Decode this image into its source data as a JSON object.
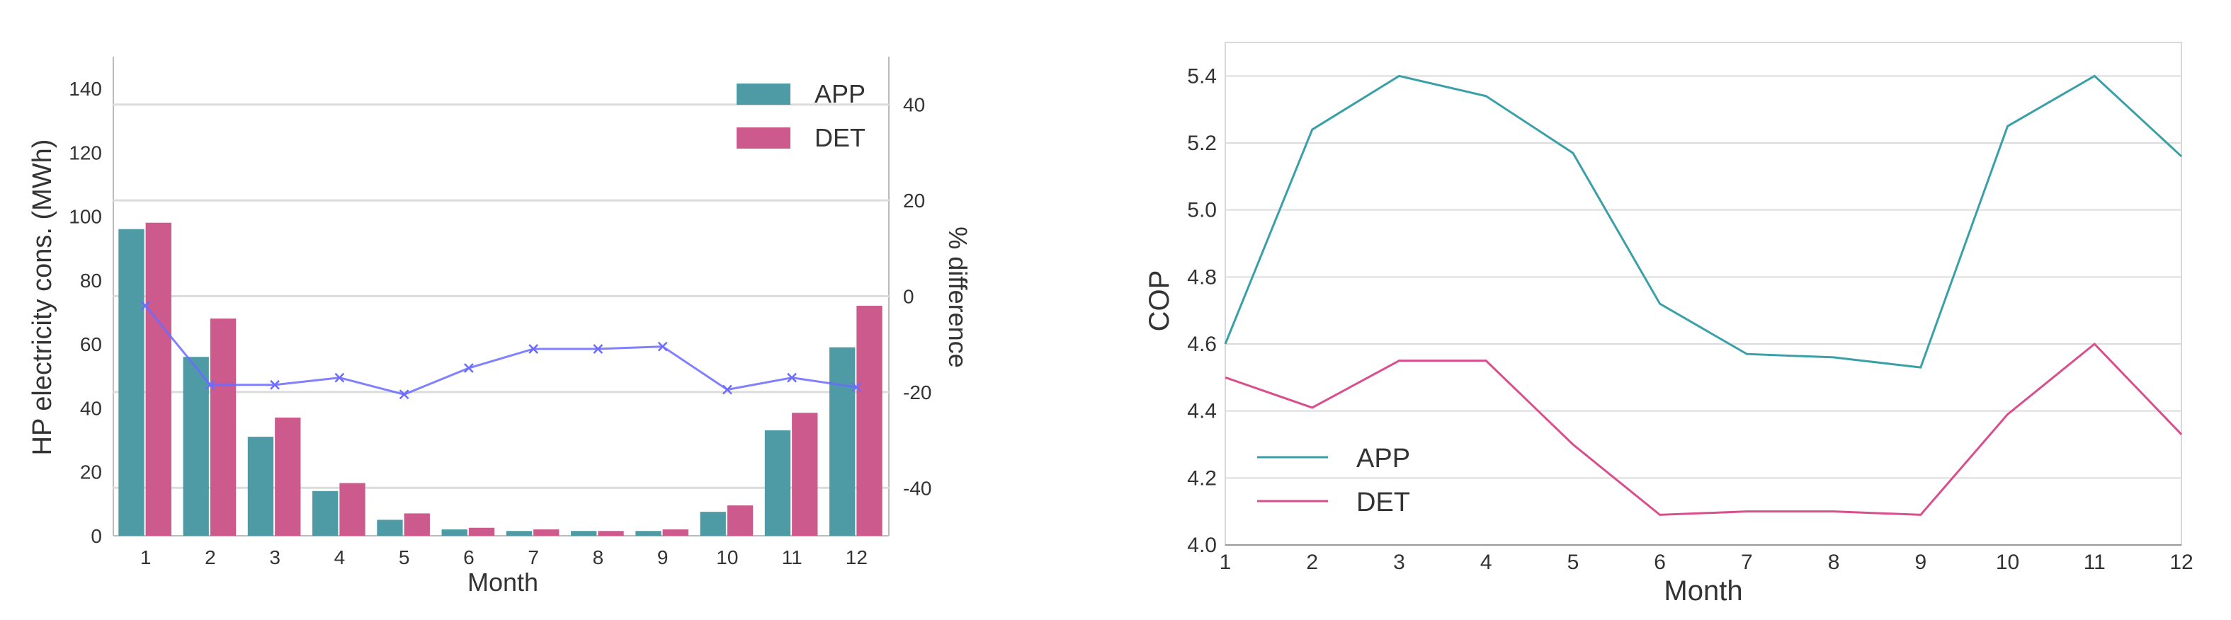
{
  "colors": {
    "app": "#4E9BA6",
    "det": "#CC5A8C",
    "diff": "#6B6BFF",
    "grid": "#DCDCDC",
    "axis": "#BBBBBB",
    "cop_app": "#3AA0A8",
    "cop_det": "#D94F8E"
  },
  "chart_data": [
    {
      "type": "bar",
      "title": "",
      "categories": [
        "1",
        "2",
        "3",
        "4",
        "5",
        "6",
        "7",
        "8",
        "9",
        "10",
        "11",
        "12"
      ],
      "series": [
        {
          "name": "APP",
          "values": [
            96,
            56,
            31,
            14,
            5,
            2,
            1.5,
            1.5,
            1.5,
            7.5,
            33,
            59
          ]
        },
        {
          "name": "DET",
          "values": [
            98,
            68,
            37,
            16.5,
            7,
            2.5,
            2,
            1.5,
            2,
            9.5,
            38.5,
            72
          ]
        }
      ],
      "secondary_series": {
        "name": "% difference",
        "type": "line",
        "values": [
          -2,
          -18.5,
          -18.5,
          -17,
          -20.5,
          -15,
          -11,
          -11,
          -10.5,
          -19.5,
          -17,
          -19
        ]
      },
      "xlabel": "Month",
      "ylabel": "HP electricity cons. (MWh)",
      "ylabel2": "% difference",
      "ylim": [
        0,
        150
      ],
      "yticks": [
        0,
        20,
        40,
        60,
        80,
        100,
        120,
        140
      ],
      "ylim2": [
        -50,
        50
      ],
      "yticks2": [
        -40,
        -20,
        0,
        20,
        40
      ],
      "legend": {
        "entries": [
          "APP",
          "DET"
        ],
        "position": "top-right"
      },
      "grid": true
    },
    {
      "type": "line",
      "title": "",
      "x": [
        1,
        2,
        3,
        4,
        5,
        6,
        7,
        8,
        9,
        10,
        11,
        12
      ],
      "xticks": [
        "1",
        "2",
        "3",
        "4",
        "5",
        "6",
        "7",
        "8",
        "9",
        "10",
        "11",
        "12"
      ],
      "series": [
        {
          "name": "APP",
          "values": [
            4.6,
            5.24,
            5.4,
            5.34,
            5.17,
            4.72,
            4.57,
            4.56,
            4.53,
            5.25,
            5.4,
            5.16
          ]
        },
        {
          "name": "DET",
          "values": [
            4.5,
            4.41,
            4.55,
            4.55,
            4.3,
            4.09,
            4.1,
            4.1,
            4.09,
            4.39,
            4.6,
            4.33
          ]
        }
      ],
      "xlabel": "Month",
      "ylabel": "COP",
      "xlim": [
        1,
        12
      ],
      "ylim": [
        4.0,
        5.5
      ],
      "yticks": [
        "4.0",
        "4.2",
        "4.4",
        "4.6",
        "4.8",
        "5.0",
        "5.2",
        "5.4"
      ],
      "legend": {
        "entries": [
          "APP",
          "DET"
        ],
        "position": "bottom-left"
      },
      "grid": true
    }
  ]
}
